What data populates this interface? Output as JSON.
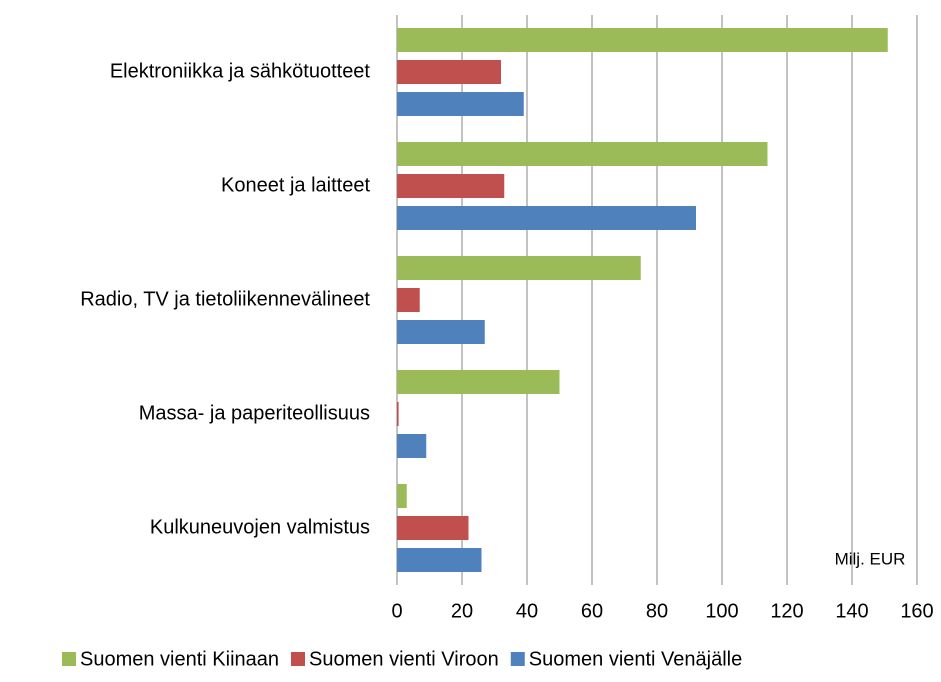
{
  "chart_data": {
    "type": "hbar",
    "categories": [
      "Elektroniikka ja sähkötuotteet",
      "Koneet ja laitteet",
      "Radio, TV ja tietoliikennevälineet",
      "Massa- ja paperiteollisuus",
      "Kulkuneuvojen valmistus"
    ],
    "series": [
      {
        "name": "Suomen vienti Kiinaan",
        "color": "#9bbb59",
        "values": [
          151,
          114,
          75,
          50,
          3
        ]
      },
      {
        "name": "Suomen vienti Viroon",
        "color": "#c0504d",
        "values": [
          32,
          33,
          7,
          0.5,
          22
        ]
      },
      {
        "name": "Suomen vienti Venäjälle",
        "color": "#4f81bd",
        "values": [
          39,
          92,
          27,
          9,
          26
        ]
      }
    ],
    "xlim": [
      0,
      160
    ],
    "xticks": [
      0,
      20,
      40,
      60,
      80,
      100,
      120,
      140,
      160
    ],
    "annotation": "Milj. EUR",
    "grid": true,
    "legend": "bottom"
  }
}
